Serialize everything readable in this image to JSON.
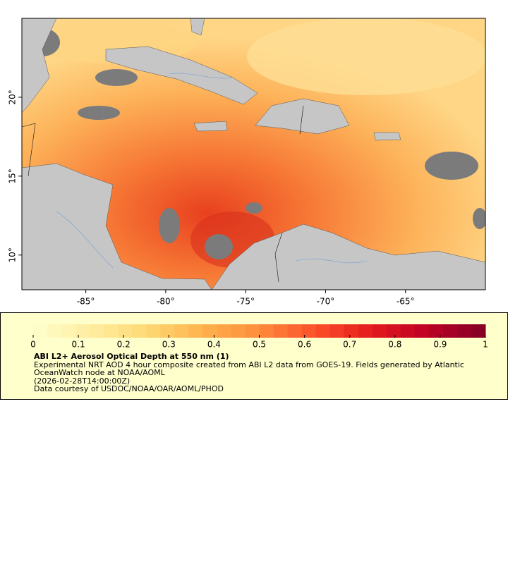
{
  "map": {
    "xlim": [
      -89,
      -60
    ],
    "ylim": [
      7.8,
      25
    ],
    "xticks": [
      {
        "value": -85,
        "label": "-85°"
      },
      {
        "value": -80,
        "label": "-80°"
      },
      {
        "value": -75,
        "label": "-75°"
      },
      {
        "value": -70,
        "label": "-70°"
      },
      {
        "value": -65,
        "label": "-65°"
      }
    ],
    "yticks": [
      {
        "value": 10,
        "label": "10°"
      },
      {
        "value": 15,
        "label": "15°"
      },
      {
        "value": 20,
        "label": "20°"
      }
    ]
  },
  "colorbar": {
    "range": [
      0,
      1
    ],
    "ticks": [
      0,
      0.1,
      0.2,
      0.3,
      0.4,
      0.5,
      0.6,
      0.7,
      0.8,
      0.9,
      1
    ],
    "colors": [
      "#ffffcc",
      "#ffeda0",
      "#fed976",
      "#feb24c",
      "#fd8d3c",
      "#fc4e2a",
      "#e31a1c",
      "#bd0026",
      "#800026"
    ]
  },
  "legend": {
    "title": "ABI L2+ Aerosol Optical Depth at 550 nm (1)",
    "description": "Experimental NRT AOD 4 hour composite created from ABI L2 data from GOES-19. Fields generated by Atlantic OceanWatch node at NOAA/AOML",
    "time": "(2026-02-28T14:00:00Z)",
    "credit": "Data courtesy of USDOC/NOAA/OAR/AOML/PHOD"
  }
}
